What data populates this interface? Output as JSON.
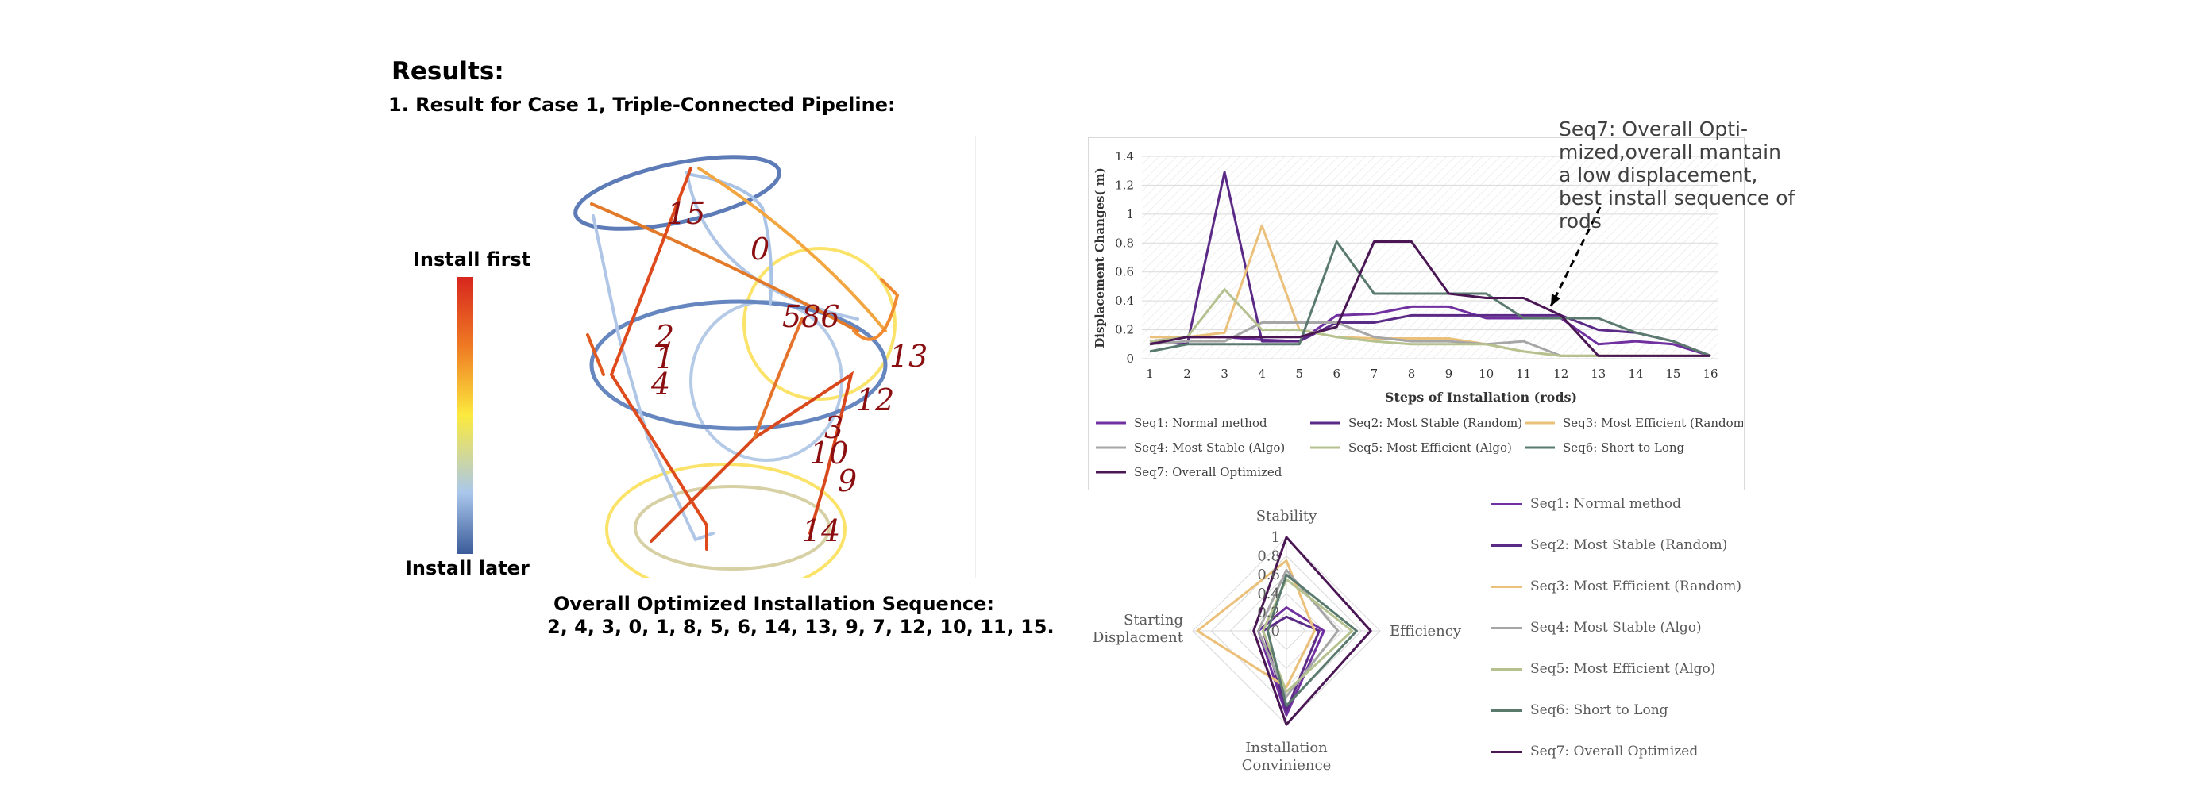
{
  "header": {
    "title": "Results:",
    "case_title": "1. Result for Case 1, Triple-Connected Pipeline:"
  },
  "model": {
    "colorbar_top": "Install first",
    "colorbar_bottom": "Install later",
    "rod_labels": [
      "15",
      "0",
      "586",
      "13",
      "2",
      "1",
      "4",
      "12",
      "3",
      "10",
      "9",
      "14"
    ],
    "sequence_title": "Overall Optimized Installation Sequence:",
    "sequence_text": "2, 4, 3, 0, 1, 8, 5, 6, 14, 13, 9, 7, 12, 10, 11, 15."
  },
  "annotation": {
    "text": "Seq7: Overall Opti-\nmized,overall mantain a low displacement, best install sequence of rods"
  },
  "chart_data": [
    {
      "type": "line",
      "xlabel": "Steps of Installation (rods)",
      "ylabel": "Displacement Changes( m)",
      "x": [
        1,
        2,
        3,
        4,
        5,
        6,
        7,
        8,
        9,
        10,
        11,
        12,
        13,
        14,
        15,
        16
      ],
      "y_ticks": [
        "0",
        "0.2",
        "0.4",
        "0.6",
        "0.8",
        "1",
        "1.2",
        "1.4"
      ],
      "ylim": [
        0,
        1.4
      ],
      "grid": true,
      "legend": "bottom",
      "series": [
        {
          "name": "Seq1: Normal method",
          "color": "#7030a0",
          "values": [
            0.12,
            0.15,
            0.15,
            0.13,
            0.12,
            0.3,
            0.31,
            0.36,
            0.36,
            0.28,
            0.28,
            0.28,
            0.1,
            0.12,
            0.1,
            0.02
          ]
        },
        {
          "name": "Seq2: Most Stable (Random)",
          "color": "#5b2a86",
          "values": [
            0.12,
            0.1,
            1.29,
            0.12,
            0.12,
            0.25,
            0.25,
            0.3,
            0.3,
            0.3,
            0.3,
            0.3,
            0.2,
            0.18,
            0.12,
            0.02
          ]
        },
        {
          "name": "Seq3: Most Efficient (Random)",
          "color": "#ebc07a",
          "values": [
            0.15,
            0.15,
            0.18,
            0.92,
            0.2,
            0.15,
            0.14,
            0.14,
            0.14,
            0.1,
            0.05,
            0.02,
            0.02,
            0.02,
            0.02,
            0.02
          ]
        },
        {
          "name": "Seq4: Most Stable (Algo)",
          "color": "#a6a6a6",
          "values": [
            0.1,
            0.12,
            0.12,
            0.25,
            0.25,
            0.25,
            0.15,
            0.12,
            0.12,
            0.1,
            0.12,
            0.02,
            0.02,
            0.02,
            0.02,
            0.02
          ]
        },
        {
          "name": "Seq5: Most Efficient (Algo)",
          "color": "#b5c18f",
          "values": [
            0.12,
            0.15,
            0.48,
            0.2,
            0.2,
            0.15,
            0.12,
            0.1,
            0.1,
            0.1,
            0.05,
            0.02,
            0.02,
            0.02,
            0.02,
            0.02
          ]
        },
        {
          "name": "Seq6: Short to Long",
          "color": "#5a7a6e",
          "values": [
            0.05,
            0.1,
            0.1,
            0.1,
            0.1,
            0.81,
            0.45,
            0.45,
            0.45,
            0.45,
            0.28,
            0.28,
            0.28,
            0.18,
            0.12,
            0.02
          ]
        },
        {
          "name": "Seq7: Overall Optimized",
          "color": "#4a1654",
          "values": [
            0.1,
            0.15,
            0.15,
            0.15,
            0.15,
            0.22,
            0.81,
            0.81,
            0.45,
            0.42,
            0.42,
            0.3,
            0.02,
            0.02,
            0.02,
            0.02
          ]
        }
      ]
    },
    {
      "type": "radar",
      "axes": [
        "Stability",
        "Efficiency",
        "Installation\nConvinience",
        "Starting\nDisplacment"
      ],
      "r_ticks": [
        "0",
        "0.2",
        "0.4",
        "0.6",
        "0.8",
        "1"
      ],
      "rlim": [
        0,
        1
      ],
      "legend": "right",
      "series": [
        {
          "name": "Seq1: Normal method",
          "color": "#7030a0",
          "values": [
            0.25,
            0.4,
            0.9,
            0.3
          ]
        },
        {
          "name": "Seq2: Most Stable (Random)",
          "color": "#5b2a86",
          "values": [
            0.15,
            0.35,
            0.85,
            0.25
          ]
        },
        {
          "name": "Seq3: Most Efficient (Random)",
          "color": "#ebc07a",
          "values": [
            0.75,
            0.3,
            0.6,
            0.95
          ]
        },
        {
          "name": "Seq4: Most Stable (Algo)",
          "color": "#a6a6a6",
          "values": [
            0.65,
            0.55,
            0.7,
            0.3
          ]
        },
        {
          "name": "Seq5: Most Efficient (Algo)",
          "color": "#b5c18f",
          "values": [
            0.55,
            0.7,
            0.65,
            0.25
          ]
        },
        {
          "name": "Seq6: Short to Long",
          "color": "#5a7a6e",
          "values": [
            0.6,
            0.75,
            0.8,
            0.2
          ]
        },
        {
          "name": "Seq7: Overall Optimized",
          "color": "#4a1654",
          "values": [
            1.0,
            0.9,
            1.0,
            0.35
          ]
        }
      ]
    }
  ]
}
